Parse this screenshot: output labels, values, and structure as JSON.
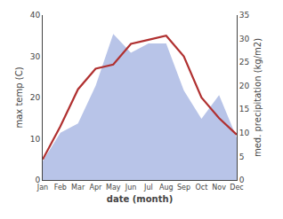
{
  "chart_data": {
    "type": "line",
    "xlabel": "date (month)",
    "ylabel": "max temp (C)",
    "y2label": "med. precipitation (kg/m2)",
    "categories": [
      "Jan",
      "Feb",
      "Mar",
      "Apr",
      "May",
      "Jun",
      "Jul",
      "Aug",
      "Sep",
      "Oct",
      "Nov",
      "Dec"
    ],
    "series": [
      {
        "type": "area",
        "axis": "y2",
        "color": "#b8c4e8",
        "values": [
          4,
          10,
          12,
          20,
          31,
          27,
          29,
          29,
          19,
          13,
          18,
          9
        ]
      },
      {
        "type": "line",
        "color": "#b03030",
        "values": [
          5,
          13,
          22,
          27,
          28,
          33,
          34,
          35,
          30,
          20,
          15,
          11
        ]
      }
    ],
    "ylim": [
      0,
      40
    ],
    "yticks": [
      0,
      10,
      20,
      30,
      40
    ],
    "y2lim": [
      0,
      35
    ],
    "y2ticks": [
      0,
      5,
      10,
      15,
      20,
      25,
      30,
      35
    ],
    "grid": false
  }
}
